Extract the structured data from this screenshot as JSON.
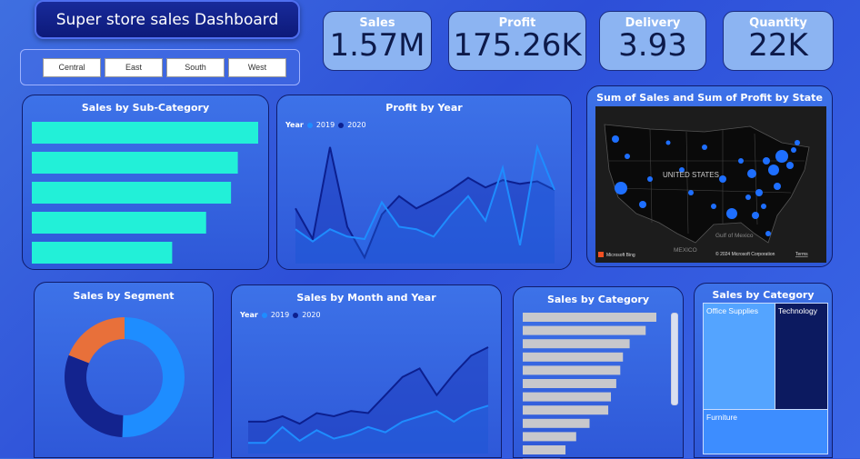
{
  "header": {
    "title": "Super store sales Dashboard"
  },
  "slicer": {
    "regions": [
      "Central",
      "East",
      "South",
      "West"
    ]
  },
  "kpis": [
    {
      "label": "Sales",
      "value": "1.57M"
    },
    {
      "label": "Profit",
      "value": "175.26K"
    },
    {
      "label": "Delivery",
      "value": "3.93"
    },
    {
      "label": "Quantity",
      "value": "22K"
    }
  ],
  "titles": {
    "sub_category": "Sales by Sub-Category",
    "profit_year": "Profit by Year",
    "map": "Sum of Sales and Sum of Profit by State",
    "segment": "Sales by Segment",
    "month_year": "Sales by Month and Year",
    "category_bar": "Sales by Category",
    "category_tree": "Sales by Category"
  },
  "legend": {
    "label": "Year",
    "y2019": "2019",
    "y2020": "2020"
  },
  "map": {
    "country": "UNITED STATES",
    "gulf": "Gulf of Mexico",
    "mexico": "MEXICO",
    "credit": "© 2024 Microsoft Corporation",
    "terms": "Terms",
    "bing": "Microsoft Bing"
  },
  "treemap": {
    "a": "Office Supplies",
    "b": "Technology",
    "c": "Furniture"
  },
  "colors": {
    "teal": "#22f0d8",
    "series2019": "#1e8dff",
    "series2020": "#0c1f8f",
    "donut_a": "#1e8dff",
    "donut_b": "#13238e",
    "donut_c": "#e8703a"
  },
  "chart_data": [
    {
      "type": "bar",
      "title": "Sales by Sub-Category",
      "orientation": "horizontal",
      "values": [
        100,
        91,
        88,
        77,
        62
      ]
    },
    {
      "type": "area",
      "title": "Profit by Year",
      "series": [
        {
          "name": "2019",
          "values": [
            28,
            18,
            28,
            22,
            20,
            50,
            30,
            28,
            22,
            40,
            55,
            35,
            78,
            15,
            95,
            60
          ]
        },
        {
          "name": "2020",
          "values": [
            45,
            20,
            95,
            30,
            5,
            40,
            55,
            45,
            52,
            60,
            70,
            62,
            68,
            65,
            67,
            60
          ]
        }
      ]
    },
    {
      "type": "pie",
      "title": "Sales by Segment",
      "values": [
        50.6,
        30.4,
        19.0
      ]
    },
    {
      "type": "area",
      "title": "Sales by Month and Year",
      "series": [
        {
          "name": "2019",
          "values": [
            10,
            10,
            25,
            12,
            22,
            14,
            18,
            25,
            20,
            30,
            35,
            40,
            30,
            40,
            45
          ]
        },
        {
          "name": "2020",
          "values": [
            30,
            30,
            35,
            28,
            38,
            35,
            40,
            38,
            55,
            72,
            80,
            55,
            75,
            92,
            100
          ]
        }
      ]
    },
    {
      "type": "bar",
      "title": "Sales by Category",
      "orientation": "horizontal",
      "values": [
        100,
        92,
        80,
        75,
        73,
        70,
        66,
        64,
        50,
        40,
        32,
        28,
        26
      ]
    },
    {
      "type": "heatmap",
      "title": "Sales by Category",
      "categories": [
        "Office Supplies",
        "Technology",
        "Furniture"
      ],
      "values": [
        43,
        36,
        21
      ]
    }
  ]
}
